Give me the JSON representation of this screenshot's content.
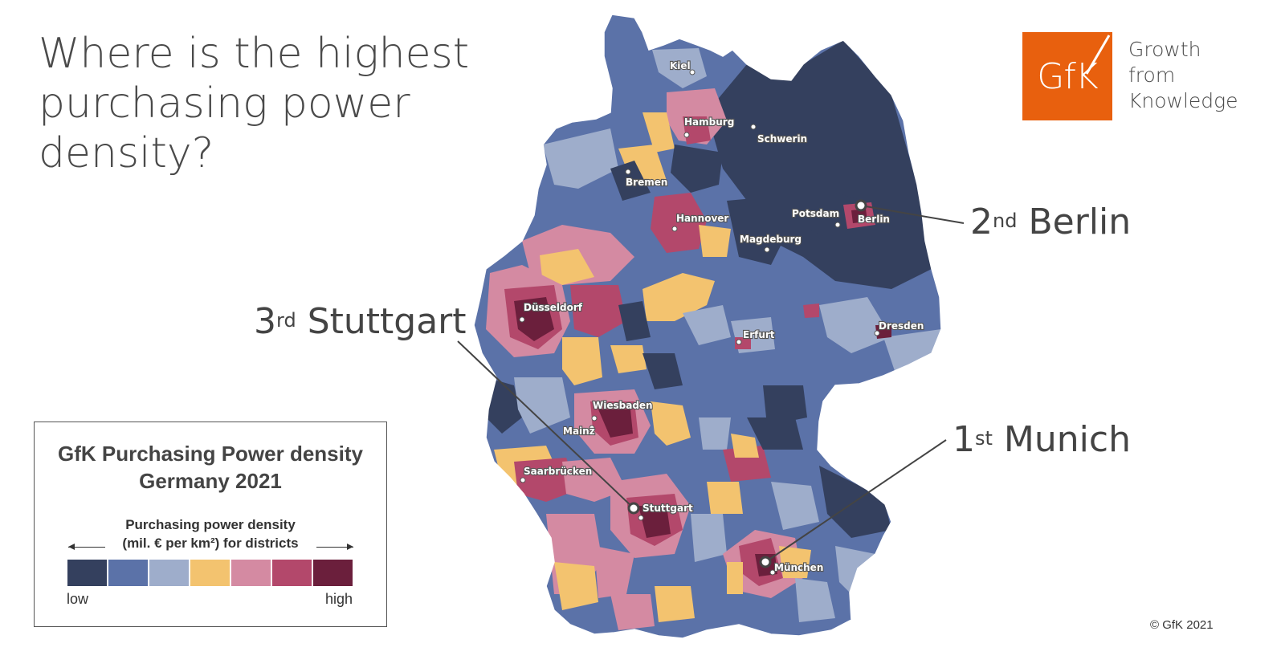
{
  "title": {
    "line1": "Where is the highest",
    "line2": "purchasing power",
    "line3": "density?"
  },
  "logo": {
    "word": "GfK",
    "tagline": [
      "Growth",
      "from",
      "Knowledge"
    ],
    "color": "#e8600e"
  },
  "callouts": [
    {
      "rank": "1",
      "suffix": "st",
      "city": "Munich"
    },
    {
      "rank": "2",
      "suffix": "nd",
      "city": "Berlin"
    },
    {
      "rank": "3",
      "suffix": "rd",
      "city": "Stuttgart"
    }
  ],
  "legend": {
    "title_line1": "GfK Purchasing  Power density",
    "title_line2": "Germany 2021",
    "subtitle_line1": "Purchasing power density",
    "subtitle_line2": "(mil. € per km²) for districts",
    "low": "low",
    "high": "high",
    "colors": [
      "#34405e",
      "#5b72a8",
      "#9eadcb",
      "#f3c36f",
      "#d48aa2",
      "#b3486b",
      "#6b1f3c"
    ]
  },
  "cities": [
    "Kiel",
    "Hamburg",
    "Schwerin",
    "Bremen",
    "Hannover",
    "Potsdam",
    "Berlin",
    "Magdeburg",
    "Düsseldorf",
    "Erfurt",
    "Dresden",
    "Wiesbaden",
    "Mainz",
    "Saarbrücken",
    "Stuttgart",
    "München"
  ],
  "copyright": "© GfK 2021"
}
